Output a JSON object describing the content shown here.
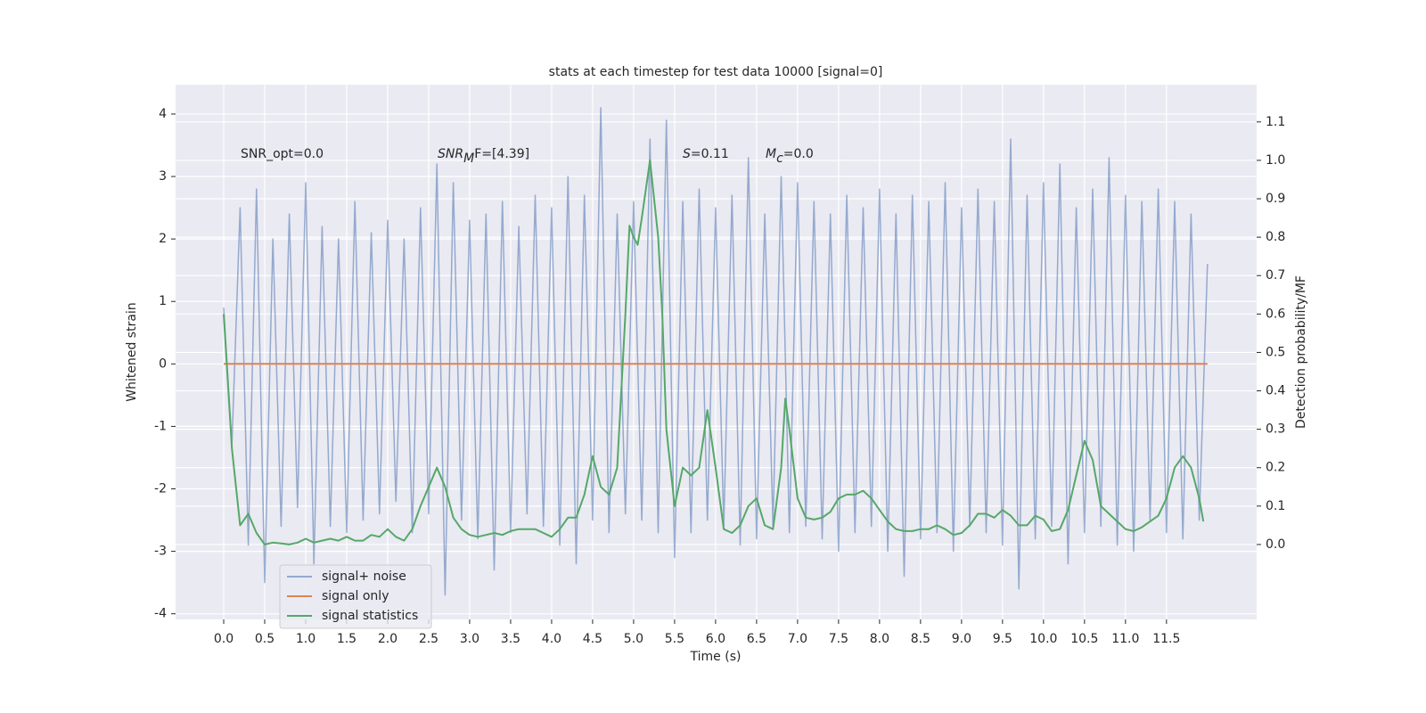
{
  "chart_data": {
    "type": "line",
    "title": "stats at each timestep for test data 10000 [signal=0]",
    "xlabel": "Time (s)",
    "ylabel": "Whitened strain",
    "y2label": "Detection probability/MF",
    "annotations": [
      {
        "base": "SNR_opt=0.0"
      },
      {
        "base": "SNR",
        "sub": "M",
        "tail": "F=[4.39]"
      },
      {
        "base": "S",
        "tail": "=0.11"
      },
      {
        "base": "M",
        "sub": "c",
        "tail": "=0.0"
      }
    ],
    "xlim": [
      -0.587,
      12.6
    ],
    "ylim": [
      -4.09,
      4.47
    ],
    "y2lim": [
      -0.195,
      1.197
    ],
    "xticks": [
      {
        "value": 0,
        "label": "0.0"
      },
      0.5,
      {
        "value": 1,
        "label": "1.0"
      },
      1.5,
      {
        "value": 2,
        "label": "2.0"
      },
      2.5,
      {
        "value": 3,
        "label": "3.0"
      },
      3.5,
      {
        "value": 4,
        "label": "4.0"
      },
      4.5,
      {
        "value": 5,
        "label": "5.0"
      },
      5.5,
      {
        "value": 6,
        "label": "6.0"
      },
      6.5,
      {
        "value": 7,
        "label": "7.0"
      },
      7.5,
      {
        "value": 8,
        "label": "8.0"
      },
      8.5,
      {
        "value": 9,
        "label": "9.0"
      },
      9.5,
      {
        "value": 10,
        "label": "10.0"
      },
      10.5,
      {
        "value": 11,
        "label": "11.0"
      },
      11.5
    ],
    "yticks": [
      -4,
      -3,
      -2,
      -1,
      0,
      1,
      2,
      3,
      4
    ],
    "y2ticks": [
      {
        "value": 0,
        "label": "0.0"
      },
      0.1,
      0.2,
      0.3,
      0.4,
      0.5,
      0.6,
      0.7,
      0.8,
      0.9,
      {
        "value": 1,
        "label": "1.0"
      },
      1.1
    ],
    "grid": true,
    "legend": "lower left",
    "series": [
      {
        "name": "signal+ noise",
        "color": "#4c72b0",
        "x": [
          0,
          0.1,
          0.2,
          0.3,
          0.4,
          0.5,
          0.6,
          0.7,
          0.8,
          0.9,
          1,
          1.1,
          1.2,
          1.3,
          1.4,
          1.5,
          1.6,
          1.7,
          1.8,
          1.9,
          2,
          2.1,
          2.2,
          2.3,
          2.4,
          2.5,
          2.6,
          2.7,
          2.8,
          2.9,
          3,
          3.1,
          3.2,
          3.3,
          3.4,
          3.5,
          3.6,
          3.7,
          3.8,
          3.9,
          4,
          4.1,
          4.2,
          4.3,
          4.4,
          4.5,
          4.6,
          4.7,
          4.8,
          4.9,
          5,
          5.1,
          5.2,
          5.3,
          5.4,
          5.5,
          5.6,
          5.7,
          5.8,
          5.9,
          6,
          6.1,
          6.2,
          6.3,
          6.4,
          6.5,
          6.6,
          6.7,
          6.8,
          6.9,
          7,
          7.1,
          7.2,
          7.3,
          7.4,
          7.5,
          7.6,
          7.7,
          7.8,
          7.9,
          8,
          8.1,
          8.2,
          8.3,
          8.4,
          8.5,
          8.6,
          8.7,
          8.8,
          8.9,
          9,
          9.1,
          9.2,
          9.3,
          9.4,
          9.5,
          9.6,
          9.7,
          9.8,
          9.9,
          10,
          10.1,
          10.2,
          10.3,
          10.4,
          10.5,
          10.6,
          10.7,
          10.8,
          10.9,
          11,
          11.1,
          11.2,
          11.3,
          11.4,
          11.5,
          11.6,
          11.7,
          11.8,
          11.9,
          12
        ],
        "values": [
          0.9,
          -1.3,
          2.5,
          -2.9,
          2.8,
          -3.5,
          2.0,
          -2.6,
          2.4,
          -2.3,
          2.9,
          -3.2,
          2.2,
          -2.6,
          2.0,
          -2.7,
          2.6,
          -2.5,
          2.1,
          -2.4,
          2.3,
          -2.2,
          2.0,
          -2.7,
          2.5,
          -2.4,
          3.2,
          -3.7,
          2.9,
          -2.5,
          2.3,
          -2.8,
          2.4,
          -3.3,
          2.6,
          -2.7,
          2.2,
          -2.4,
          2.7,
          -2.6,
          2.5,
          -2.9,
          3.0,
          -3.2,
          2.7,
          -2.5,
          4.1,
          -2.7,
          2.4,
          -2.4,
          2.6,
          -2.5,
          3.6,
          -2.7,
          3.9,
          -3.1,
          2.6,
          -2.7,
          2.8,
          -2.5,
          2.5,
          -2.6,
          2.7,
          -2.9,
          3.3,
          -2.8,
          2.4,
          -2.6,
          3.0,
          -2.7,
          2.9,
          -2.6,
          2.6,
          -2.8,
          2.4,
          -3.0,
          2.7,
          -2.7,
          2.5,
          -2.6,
          2.8,
          -3.0,
          2.4,
          -3.4,
          2.7,
          -2.8,
          2.6,
          -2.7,
          2.9,
          -3.0,
          2.5,
          -2.6,
          2.8,
          -2.7,
          2.6,
          -2.9,
          3.6,
          -3.6,
          2.7,
          -2.8,
          2.9,
          -2.6,
          3.2,
          -3.2,
          2.5,
          -2.7,
          2.8,
          -2.6,
          3.3,
          -2.9,
          2.7,
          -3.0,
          2.6,
          -2.5,
          2.8,
          -2.7,
          2.6,
          -2.8,
          2.4,
          -2.5,
          1.6
        ]
      },
      {
        "name": "signal only",
        "color": "#dd8452",
        "x": [
          0,
          12
        ],
        "values": [
          0,
          0
        ]
      },
      {
        "name": "signal statistics",
        "color": "#55a868",
        "axis": "y2",
        "x": [
          0,
          0.1,
          0.2,
          0.3,
          0.4,
          0.5,
          0.6,
          0.7,
          0.8,
          0.9,
          1,
          1.1,
          1.2,
          1.3,
          1.4,
          1.5,
          1.6,
          1.7,
          1.8,
          1.9,
          2,
          2.1,
          2.2,
          2.3,
          2.4,
          2.5,
          2.6,
          2.7,
          2.8,
          2.9,
          3,
          3.1,
          3.2,
          3.3,
          3.4,
          3.5,
          3.6,
          3.7,
          3.8,
          3.9,
          4,
          4.1,
          4.2,
          4.3,
          4.4,
          4.5,
          4.6,
          4.7,
          4.8,
          4.9,
          4.95,
          5,
          5.05,
          5.1,
          5.2,
          5.3,
          5.35,
          5.4,
          5.5,
          5.6,
          5.7,
          5.8,
          5.9,
          6,
          6.1,
          6.2,
          6.3,
          6.4,
          6.5,
          6.6,
          6.7,
          6.8,
          6.85,
          6.9,
          7,
          7.1,
          7.2,
          7.3,
          7.4,
          7.5,
          7.6,
          7.7,
          7.8,
          7.9,
          8,
          8.1,
          8.2,
          8.3,
          8.4,
          8.5,
          8.6,
          8.7,
          8.8,
          8.9,
          9,
          9.1,
          9.2,
          9.3,
          9.4,
          9.5,
          9.6,
          9.7,
          9.8,
          9.9,
          10,
          10.1,
          10.2,
          10.3,
          10.4,
          10.5,
          10.6,
          10.7,
          10.8,
          10.9,
          11,
          11.1,
          11.2,
          11.3,
          11.4,
          11.5,
          11.6,
          11.7,
          11.8,
          11.9,
          11.95
        ],
        "values": [
          0.6,
          0.25,
          0.05,
          0.08,
          0.03,
          0.0,
          0.005,
          0.003,
          0.0,
          0.005,
          0.015,
          0.005,
          0.01,
          0.015,
          0.01,
          0.02,
          0.01,
          0.01,
          0.025,
          0.02,
          0.04,
          0.02,
          0.01,
          0.04,
          0.1,
          0.15,
          0.2,
          0.15,
          0.07,
          0.04,
          0.025,
          0.02,
          0.025,
          0.03,
          0.025,
          0.035,
          0.04,
          0.04,
          0.04,
          0.03,
          0.02,
          0.04,
          0.07,
          0.07,
          0.13,
          0.23,
          0.15,
          0.13,
          0.2,
          0.6,
          0.83,
          0.8,
          0.78,
          0.85,
          1.0,
          0.8,
          0.6,
          0.3,
          0.1,
          0.2,
          0.18,
          0.2,
          0.35,
          0.2,
          0.04,
          0.03,
          0.05,
          0.1,
          0.12,
          0.05,
          0.04,
          0.2,
          0.38,
          0.3,
          0.12,
          0.07,
          0.065,
          0.07,
          0.085,
          0.12,
          0.13,
          0.13,
          0.14,
          0.12,
          0.09,
          0.06,
          0.04,
          0.035,
          0.035,
          0.04,
          0.04,
          0.05,
          0.04,
          0.025,
          0.03,
          0.05,
          0.08,
          0.08,
          0.07,
          0.09,
          0.075,
          0.05,
          0.05,
          0.075,
          0.065,
          0.035,
          0.04,
          0.09,
          0.18,
          0.27,
          0.22,
          0.1,
          0.08,
          0.06,
          0.04,
          0.035,
          0.045,
          0.06,
          0.075,
          0.12,
          0.2,
          0.23,
          0.2,
          0.12,
          0.06
        ]
      }
    ]
  }
}
